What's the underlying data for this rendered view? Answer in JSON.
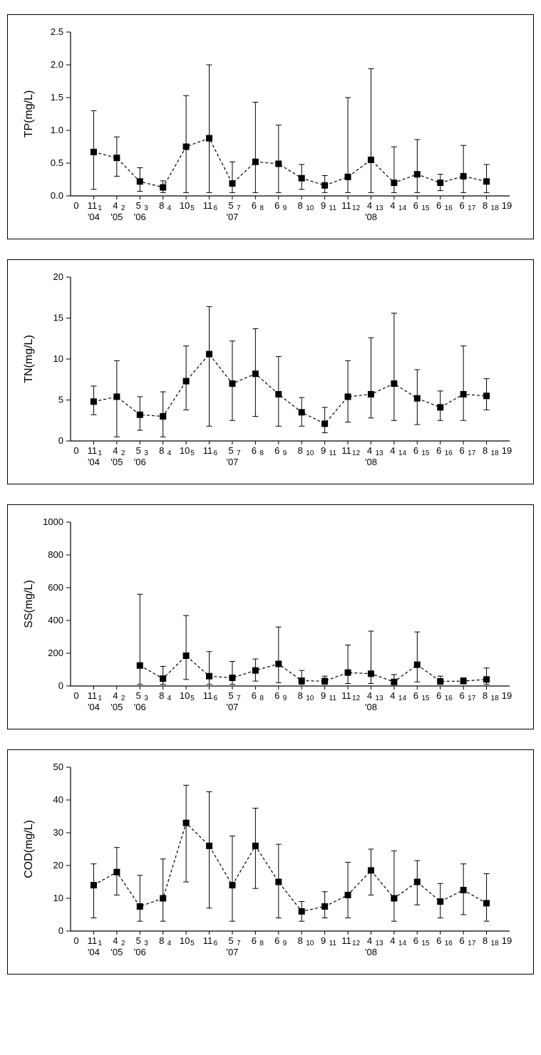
{
  "global": {
    "font_family": "sans-serif",
    "axis_label_fontsize": 16,
    "tick_fontsize": 13,
    "axis_color": "#000000",
    "marker_color": "#000000",
    "line_dash": "4 3",
    "axis_line_width": 1.2,
    "marker_size_half": 4.5,
    "errorbar_cap_half": 4,
    "errorbar_width": 1.0,
    "x_indices": [
      1,
      2,
      3,
      4,
      5,
      6,
      7,
      8,
      9,
      10,
      11,
      12,
      13,
      14,
      15,
      16,
      17,
      18
    ],
    "x_base_labels": [
      "1",
      "2",
      "3",
      "4",
      "5",
      "6",
      "7",
      "8",
      "9",
      "10",
      "11",
      "12",
      "13",
      "14",
      "15",
      "16",
      "17",
      "18"
    ],
    "x_top_labels": [
      "11",
      "4",
      "5",
      "8",
      "10",
      "11",
      "5",
      "6",
      "6",
      "8",
      "9",
      "11",
      "4",
      "4",
      "6",
      "6",
      "6",
      "8"
    ],
    "x_year_markers": [
      {
        "x": 1,
        "label": "'04"
      },
      {
        "x": 2,
        "label": "'05"
      },
      {
        "x": 3,
        "label": "'06"
      },
      {
        "x": 7,
        "label": "'07"
      },
      {
        "x": 13,
        "label": "'08"
      }
    ],
    "x_range_lo": 0,
    "x_range_hi": 19
  },
  "charts": [
    {
      "id": "tp",
      "ylabel": "TP(mg/L)",
      "ylim": [
        0,
        2.5
      ],
      "ytick_step": 0.5,
      "y_decimals": 1,
      "mean": [
        0.67,
        0.58,
        0.22,
        0.13,
        0.75,
        0.88,
        0.19,
        0.52,
        0.49,
        0.27,
        0.16,
        0.29,
        0.55,
        0.2,
        0.33,
        0.2,
        0.3,
        0.22
      ],
      "err_lo": [
        0.1,
        0.3,
        0.07,
        0.05,
        0.05,
        0.05,
        0.05,
        0.05,
        0.05,
        0.1,
        0.05,
        0.05,
        0.05,
        0.05,
        0.05,
        0.08,
        0.05,
        0.05
      ],
      "err_hi": [
        1.3,
        0.9,
        0.43,
        0.23,
        1.53,
        2.0,
        0.52,
        1.43,
        1.08,
        0.48,
        0.31,
        1.5,
        1.94,
        0.75,
        0.86,
        0.33,
        0.77,
        0.48
      ]
    },
    {
      "id": "tn",
      "ylabel": "TN(mg/L)",
      "ylim": [
        0,
        20
      ],
      "ytick_step": 5,
      "y_decimals": 0,
      "mean": [
        4.8,
        5.4,
        3.2,
        3.0,
        7.3,
        10.6,
        7.0,
        8.2,
        5.7,
        3.5,
        2.1,
        5.4,
        5.7,
        7.0,
        5.2,
        4.1,
        5.7,
        5.5
      ],
      "err_lo": [
        3.2,
        0.5,
        1.3,
        0.5,
        3.8,
        1.8,
        2.5,
        3.0,
        1.8,
        1.8,
        1.0,
        2.3,
        2.8,
        2.5,
        2.0,
        2.5,
        2.5,
        3.8
      ],
      "err_hi": [
        6.7,
        9.8,
        5.4,
        6.0,
        11.6,
        16.4,
        12.2,
        13.7,
        10.3,
        5.3,
        4.1,
        9.8,
        12.6,
        15.6,
        8.7,
        6.1,
        11.6,
        7.6
      ]
    },
    {
      "id": "ss",
      "ylabel": "SS(mg/L)",
      "ylim": [
        0,
        1000
      ],
      "ytick_step": 200,
      "y_decimals": 0,
      "mean": [
        null,
        null,
        125,
        45,
        185,
        60,
        50,
        95,
        135,
        32,
        30,
        82,
        75,
        25,
        130,
        28,
        30,
        40
      ],
      "err_lo": [
        null,
        null,
        10,
        10,
        40,
        10,
        10,
        30,
        20,
        10,
        10,
        15,
        15,
        8,
        25,
        10,
        15,
        10
      ],
      "err_hi": [
        null,
        null,
        560,
        120,
        430,
        210,
        150,
        165,
        360,
        95,
        60,
        250,
        335,
        70,
        330,
        60,
        50,
        110
      ]
    },
    {
      "id": "cod",
      "ylabel": "COD(mg/L)",
      "ylim": [
        0,
        50
      ],
      "ytick_step": 10,
      "y_decimals": 0,
      "mean": [
        14,
        18,
        7.5,
        10,
        33,
        26,
        14,
        26,
        15,
        6,
        7.5,
        11,
        18.5,
        10,
        15,
        9,
        12.5,
        8.5
      ],
      "err_lo": [
        4,
        11,
        3,
        3,
        15,
        7,
        3,
        13,
        4,
        3,
        4,
        4,
        11,
        3,
        8,
        4,
        5,
        3
      ],
      "err_hi": [
        20.5,
        25.5,
        17,
        22,
        44.5,
        42.5,
        29,
        37.5,
        26.5,
        9,
        12,
        21,
        25,
        24.5,
        21.5,
        14.5,
        20.5,
        17.5
      ]
    }
  ]
}
